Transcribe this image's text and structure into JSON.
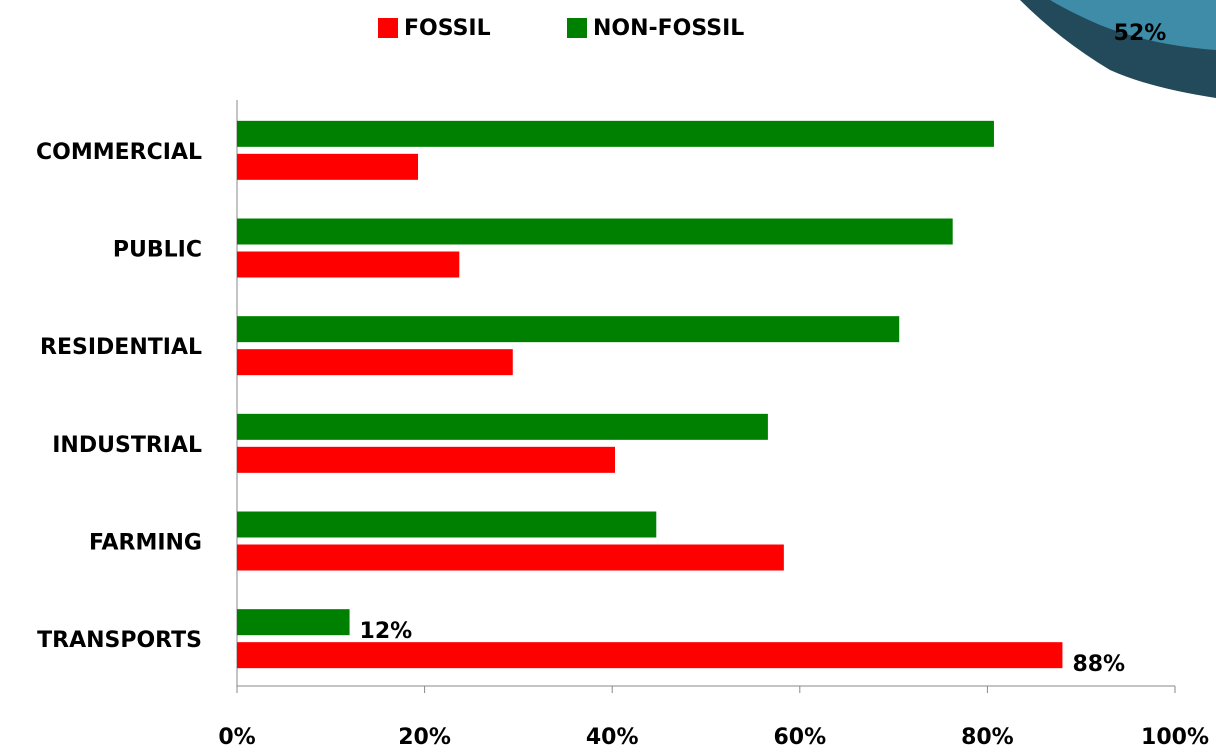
{
  "badge_label": "52%",
  "chart_data": {
    "type": "hbar",
    "categories": [
      "COMMERCIAL",
      "PUBLIC",
      "RESIDENTIAL",
      "INDUSTRIAL",
      "FARMING",
      "TRANSPORTS"
    ],
    "series": [
      {
        "name": "NON-FOSSIL",
        "color": "#008000",
        "values": [
          80.7,
          76.3,
          70.6,
          56.6,
          44.7,
          12
        ],
        "value_labels": [
          null,
          null,
          null,
          null,
          null,
          "12%"
        ]
      },
      {
        "name": "FOSSIL",
        "color": "#ff0000",
        "values": [
          19.3,
          23.7,
          29.4,
          40.3,
          58.3,
          88
        ],
        "value_labels": [
          null,
          null,
          null,
          null,
          null,
          "88%"
        ]
      }
    ],
    "xlim": [
      0,
      100
    ],
    "xticks": [
      {
        "value": 0,
        "label": "0%"
      },
      {
        "value": 20,
        "label": "20%"
      },
      {
        "value": 40,
        "label": "40%"
      },
      {
        "value": 60,
        "label": "60%"
      },
      {
        "value": 80,
        "label": "80%"
      },
      {
        "value": 100,
        "label": "100%"
      }
    ],
    "legend": "top"
  }
}
